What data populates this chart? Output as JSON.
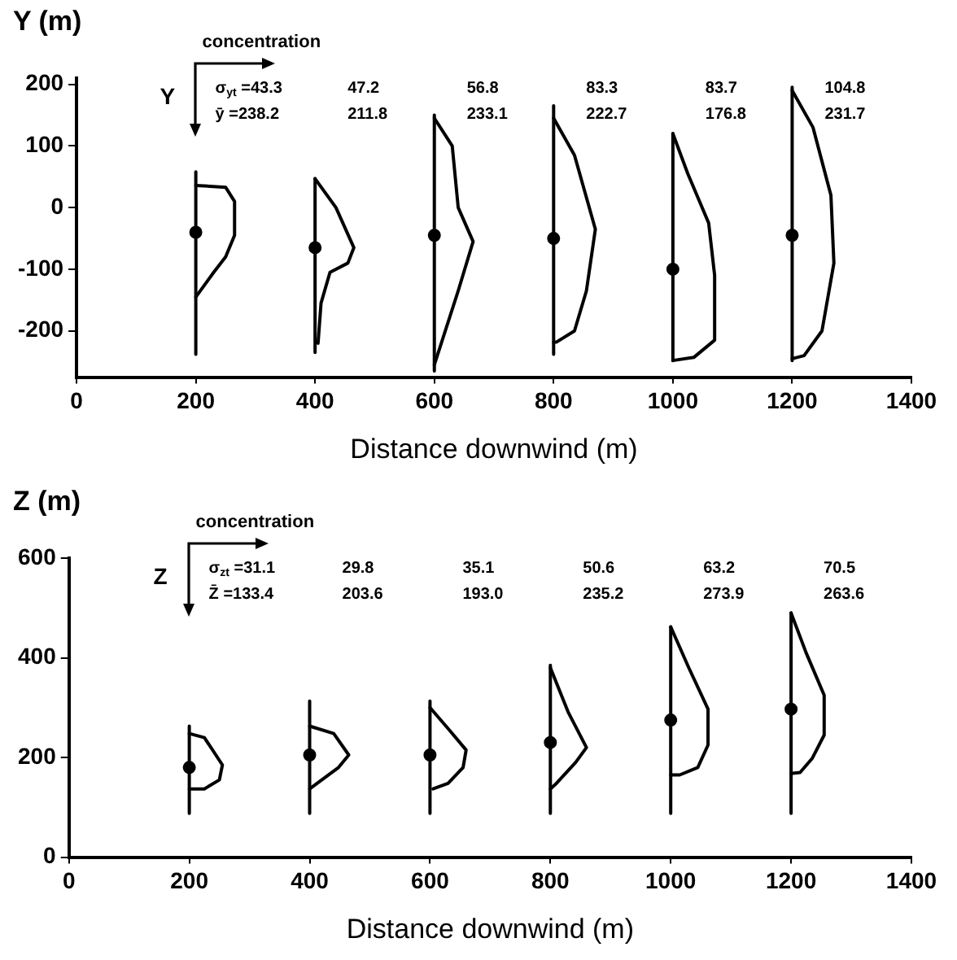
{
  "chart_data": [
    {
      "type": "line",
      "xlabel": "Distance downwind (m)",
      "ylabel": "Y (m)",
      "xlim": [
        0,
        1400
      ],
      "xticks": [
        0,
        200,
        400,
        600,
        800,
        1000,
        1200,
        1400
      ],
      "ylim": [
        -275,
        210
      ],
      "yticks": [
        -200,
        -100,
        0,
        100,
        200
      ],
      "annotations": [
        "concentration",
        "Y",
        "σ$_{yt}$ =43.3",
        "47.2",
        "56.8",
        "83.3",
        "83.7",
        "104.8",
        "ȳ =238.2",
        "211.8",
        "233.1",
        "222.7",
        "176.8",
        "231.7"
      ],
      "series": [
        {
          "color": "#000000",
          "marker": "none",
          "x": [
            200,
            200
          ],
          "values": [
            58,
            -238
          ]
        },
        {
          "color": "#000000",
          "marker": "none",
          "x": [
            200,
            250,
            265,
            265,
            250,
            230,
            200
          ],
          "values": [
            36,
            33,
            10,
            -45,
            -80,
            -105,
            -145
          ]
        },
        {
          "color": "#000000",
          "marker": "none",
          "x": [
            400,
            400
          ],
          "values": [
            47,
            -235
          ]
        },
        {
          "color": "#000000",
          "marker": "none",
          "x": [
            400,
            435,
            465,
            455,
            425,
            410,
            405
          ],
          "values": [
            47,
            0,
            -65,
            -90,
            -105,
            -155,
            -220
          ]
        },
        {
          "color": "#000000",
          "marker": "none",
          "x": [
            600,
            600
          ],
          "values": [
            150,
            -265
          ]
        },
        {
          "color": "#000000",
          "marker": "none",
          "x": [
            600,
            630,
            640,
            665,
            640,
            600
          ],
          "values": [
            145,
            100,
            0,
            -55,
            -135,
            -255
          ]
        },
        {
          "color": "#000000",
          "marker": "none",
          "x": [
            800,
            800
          ],
          "values": [
            165,
            -238
          ]
        },
        {
          "color": "#000000",
          "marker": "none",
          "x": [
            800,
            835,
            870,
            855,
            835,
            805,
            800
          ],
          "values": [
            145,
            85,
            -35,
            -135,
            -200,
            -218,
            -218
          ]
        },
        {
          "color": "#000000",
          "marker": "none",
          "x": [
            1000,
            1000
          ],
          "values": [
            120,
            -248
          ]
        },
        {
          "color": "#000000",
          "marker": "none",
          "x": [
            1000,
            1025,
            1060,
            1070,
            1070,
            1035,
            1000
          ],
          "values": [
            120,
            55,
            -25,
            -110,
            -215,
            -243,
            -248
          ]
        },
        {
          "color": "#000000",
          "marker": "none",
          "x": [
            1200,
            1200
          ],
          "values": [
            195,
            -248
          ]
        },
        {
          "color": "#000000",
          "marker": "none",
          "x": [
            1200,
            1235,
            1265,
            1270,
            1250,
            1220,
            1200
          ],
          "values": [
            190,
            130,
            20,
            -90,
            -200,
            -240,
            -245
          ]
        },
        {
          "type": "scatter",
          "color": "#000000",
          "marker": "circle",
          "x": [
            200,
            400,
            600,
            800,
            1000,
            1200
          ],
          "values": [
            -40,
            -65,
            -45,
            -50,
            -100,
            -45
          ]
        }
      ]
    },
    {
      "type": "line",
      "xlabel": "Distance downwind (m)",
      "ylabel": "Z (m)",
      "xlim": [
        0,
        1400
      ],
      "xticks": [
        0,
        200,
        400,
        600,
        800,
        1000,
        1200,
        1400
      ],
      "ylim": [
        0,
        600
      ],
      "yticks": [
        0,
        200,
        400,
        600
      ],
      "annotations": [
        "concentration",
        "Z",
        "σ$_{zt}$ =31.1",
        "29.8",
        "35.1",
        "50.6",
        "63.2",
        "70.5",
        "Z̄ =133.4",
        "203.6",
        "193.0",
        "235.2",
        "273.9",
        "263.6"
      ],
      "series": [
        {
          "color": "#000000",
          "marker": "none",
          "x": [
            200,
            200
          ],
          "values": [
            263,
            88
          ]
        },
        {
          "color": "#000000",
          "marker": "none",
          "x": [
            200,
            225,
            255,
            250,
            225,
            200
          ],
          "values": [
            248,
            240,
            185,
            155,
            137,
            137
          ]
        },
        {
          "color": "#000000",
          "marker": "none",
          "x": [
            400,
            400
          ],
          "values": [
            313,
            88
          ]
        },
        {
          "color": "#000000",
          "marker": "none",
          "x": [
            400,
            440,
            465,
            448,
            400
          ],
          "values": [
            263,
            248,
            205,
            180,
            137
          ]
        },
        {
          "color": "#000000",
          "marker": "none",
          "x": [
            600,
            600
          ],
          "values": [
            313,
            88
          ]
        },
        {
          "color": "#000000",
          "marker": "none",
          "x": [
            600,
            630,
            660,
            655,
            630,
            605
          ],
          "values": [
            300,
            258,
            215,
            180,
            148,
            137
          ]
        },
        {
          "color": "#000000",
          "marker": "none",
          "x": [
            800,
            800
          ],
          "values": [
            385,
            88
          ]
        },
        {
          "color": "#000000",
          "marker": "none",
          "x": [
            800,
            830,
            860,
            842,
            810,
            800
          ],
          "values": [
            380,
            290,
            220,
            190,
            148,
            137
          ]
        },
        {
          "color": "#000000",
          "marker": "none",
          "x": [
            1000,
            1000
          ],
          "values": [
            462,
            88
          ]
        },
        {
          "color": "#000000",
          "marker": "none",
          "x": [
            1000,
            1030,
            1062,
            1062,
            1045,
            1015,
            1000
          ],
          "values": [
            462,
            380,
            297,
            225,
            180,
            165,
            165
          ]
        },
        {
          "color": "#000000",
          "marker": "none",
          "x": [
            1200,
            1200
          ],
          "values": [
            490,
            88
          ]
        },
        {
          "color": "#000000",
          "marker": "none",
          "x": [
            1200,
            1225,
            1255,
            1255,
            1235,
            1215,
            1200
          ],
          "values": [
            490,
            410,
            325,
            245,
            198,
            170,
            168
          ]
        },
        {
          "type": "scatter",
          "color": "#000000",
          "marker": "circle",
          "x": [
            200,
            400,
            600,
            800,
            1000,
            1200
          ],
          "values": [
            180,
            205,
            205,
            230,
            275,
            297
          ]
        }
      ]
    }
  ]
}
